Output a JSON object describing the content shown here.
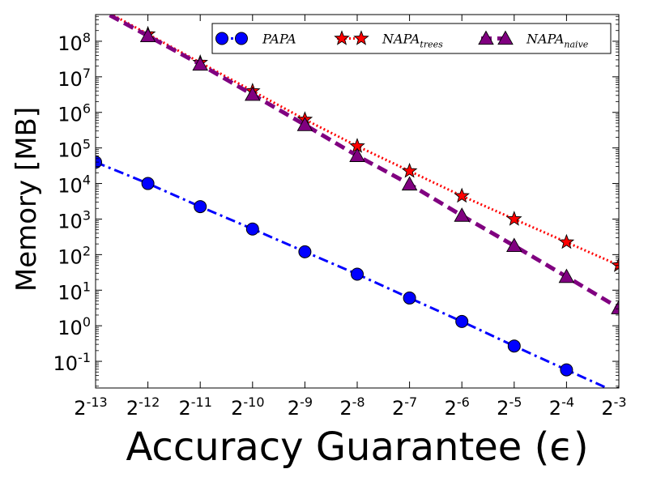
{
  "chart_data": {
    "type": "line",
    "xlabel": "Accuracy Guarantee (ϵ)",
    "ylabel": "Memory [MB]",
    "x_scale": "log2",
    "y_scale": "log10",
    "x_base": "2",
    "x": [
      -13,
      -12,
      -11,
      -10,
      -9,
      -8,
      -7,
      -6,
      -5,
      -4,
      -3
    ],
    "x_tick_exponents": [
      "-13",
      "-12",
      "-11",
      "-10",
      "-9",
      "-8",
      "-7",
      "-6",
      "-5",
      "-4",
      "-3"
    ],
    "y_base": "10",
    "y_tick_exponents": [
      "-1",
      "0",
      "1",
      "2",
      "3",
      "4",
      "5",
      "6",
      "7",
      "8"
    ],
    "xlim_exponent": [
      -13,
      -3
    ],
    "ylim_exponent": [
      -1.75,
      8.75
    ],
    "grid": false,
    "legend_position": "top-right",
    "series": [
      {
        "name": "PAPA",
        "color": "#0000ff",
        "marker": "circle",
        "linestyle": "dashdot",
        "x": [
          -13,
          -12,
          -11,
          -10,
          -9,
          -8,
          -7,
          -6,
          -5,
          -4,
          -3
        ],
        "y_log10": [
          4.6,
          4.0,
          3.35,
          2.72,
          2.08,
          1.45,
          0.78,
          0.12,
          -0.57,
          -1.24,
          -1.9
        ]
      },
      {
        "name": "NAPA",
        "name_subscript": "trees",
        "color": "#ff0000",
        "marker": "star",
        "linestyle": "dotted",
        "x": [
          -12,
          -11,
          -10,
          -9,
          -8,
          -7,
          -6,
          -5,
          -4,
          -3
        ],
        "y_log10": [
          8.2,
          7.4,
          6.6,
          5.8,
          5.05,
          4.35,
          3.65,
          3.0,
          2.35,
          1.7
        ]
      },
      {
        "name": "NAPA",
        "name_subscript": "naive",
        "color": "#800080",
        "marker": "triangle",
        "linestyle": "dashed",
        "x": [
          -12,
          -11,
          -10,
          -9,
          -8,
          -7,
          -6,
          -5,
          -4,
          -3
        ],
        "y_log10": [
          8.15,
          7.35,
          6.5,
          5.65,
          4.78,
          3.98,
          3.1,
          2.25,
          1.38,
          0.5
        ]
      }
    ]
  }
}
